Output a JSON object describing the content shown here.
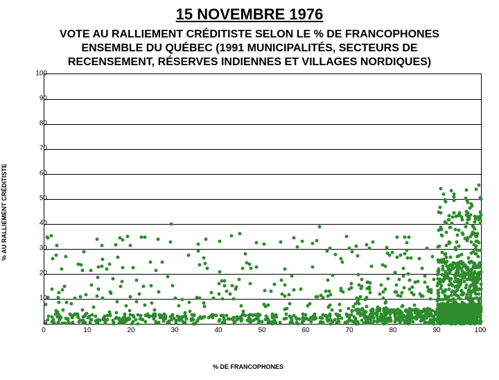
{
  "title": "15 NOVEMBRE 1976",
  "subtitle_l1": "VOTE AU RALLIEMENT CRÉDITISTE SELON LE % DE FRANCOPHONES",
  "subtitle_l2": "ENSEMBLE DU QUÉBEC (1991 MUNICIPALITÉS, SECTEURS DE",
  "subtitle_l3": "RECENSEMENT, RÉSERVES INDIENNES ET VILLAGES NORDIQUES)",
  "chart": {
    "type": "scatter",
    "xlabel": "% DE FRANCOPHONES",
    "ylabel": "% AU RALLIEMENT CRÉDITISTE",
    "xlim": [
      0,
      100
    ],
    "ylim": [
      0,
      100
    ],
    "xtick_step": 10,
    "ytick_step": 10,
    "xticks": [
      0,
      10,
      20,
      30,
      40,
      50,
      60,
      70,
      80,
      90,
      100
    ],
    "yticks": [
      0,
      10,
      20,
      30,
      40,
      50,
      60,
      70,
      80,
      90,
      100
    ],
    "grid_color": "#000000",
    "background_color": "#ffffff",
    "marker_color": "#2e8b2e",
    "marker_size": 5,
    "label_fontsize": 9,
    "tick_fontsize": 10,
    "n_points": 1991,
    "distribution_note": "dense cluster along y≈0–8 across all x; increasing density and spread at high x (80–100) with many points up to y≈55; sparse outliers y>30 at low/mid x",
    "seed": 42
  }
}
